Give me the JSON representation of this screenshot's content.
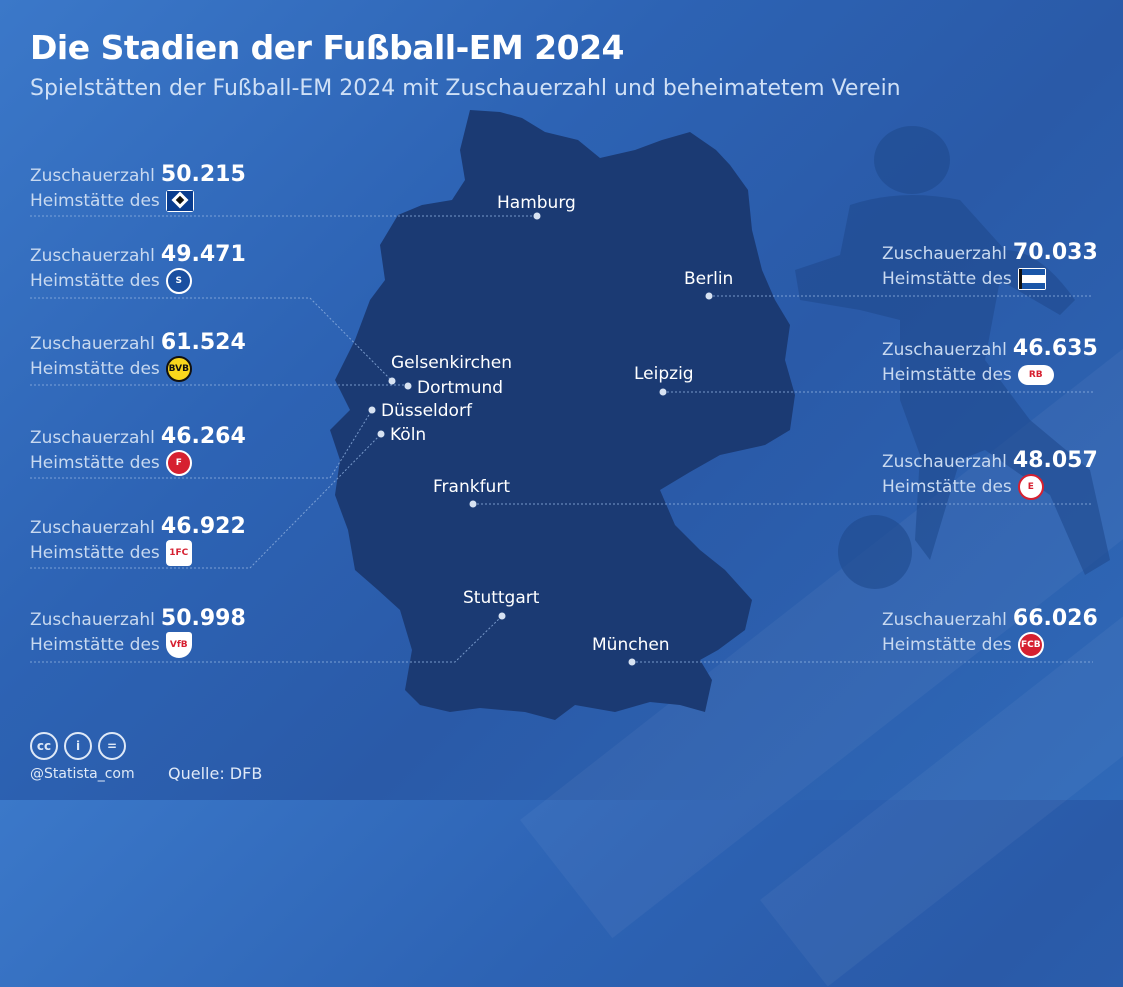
{
  "title": "Die Stadien der Fußball-EM 2024",
  "subtitle": "Spielstätten der Fußball-EM 2024 mit Zuschauerzahl und beheimatetem Verein",
  "labels": {
    "capacity": "Zuschauerzahl",
    "home": "Heimstätte des"
  },
  "stadiums_left": [
    {
      "city": "Hamburg",
      "capacity": "50.215",
      "club_icon": "hsv-crest-icon"
    },
    {
      "city": "Gelsenkirchen",
      "capacity": "49.471",
      "club_icon": "schalke-crest-icon"
    },
    {
      "city": "Dortmund",
      "capacity": "61.524",
      "club_icon": "bvb-crest-icon"
    },
    {
      "city": "Düsseldorf",
      "capacity": "46.264",
      "club_icon": "fortuna-crest-icon"
    },
    {
      "city": "Köln",
      "capacity": "46.922",
      "club_icon": "koeln-crest-icon"
    },
    {
      "city": "Stuttgart",
      "capacity": "50.998",
      "club_icon": "vfb-crest-icon"
    }
  ],
  "stadiums_right": [
    {
      "city": "Berlin",
      "capacity": "70.033",
      "club_icon": "hertha-crest-icon"
    },
    {
      "city": "Leipzig",
      "capacity": "46.635",
      "club_icon": "rbl-crest-icon"
    },
    {
      "city": "Frankfurt",
      "capacity": "48.057",
      "club_icon": "eintracht-crest-icon"
    },
    {
      "city": "München",
      "capacity": "66.026",
      "club_icon": "fcb-crest-icon"
    }
  ],
  "cities": {
    "hamburg": "Hamburg",
    "berlin": "Berlin",
    "gelsenkirchen": "Gelsenkirchen",
    "dortmund": "Dortmund",
    "duesseldorf": "Düsseldorf",
    "koeln": "Köln",
    "leipzig": "Leipzig",
    "frankfurt": "Frankfurt",
    "stuttgart": "Stuttgart",
    "muenchen": "München"
  },
  "footer": {
    "handle": "@Statista_com",
    "source": "Quelle: DFB",
    "license_icons": [
      "cc-icon",
      "attribution-icon",
      "no-derivatives-icon"
    ]
  },
  "colors": {
    "background": "#2d63b4",
    "map_fill": "#1b3a73",
    "text": "#ffffff",
    "label": "#c8d9f0"
  }
}
